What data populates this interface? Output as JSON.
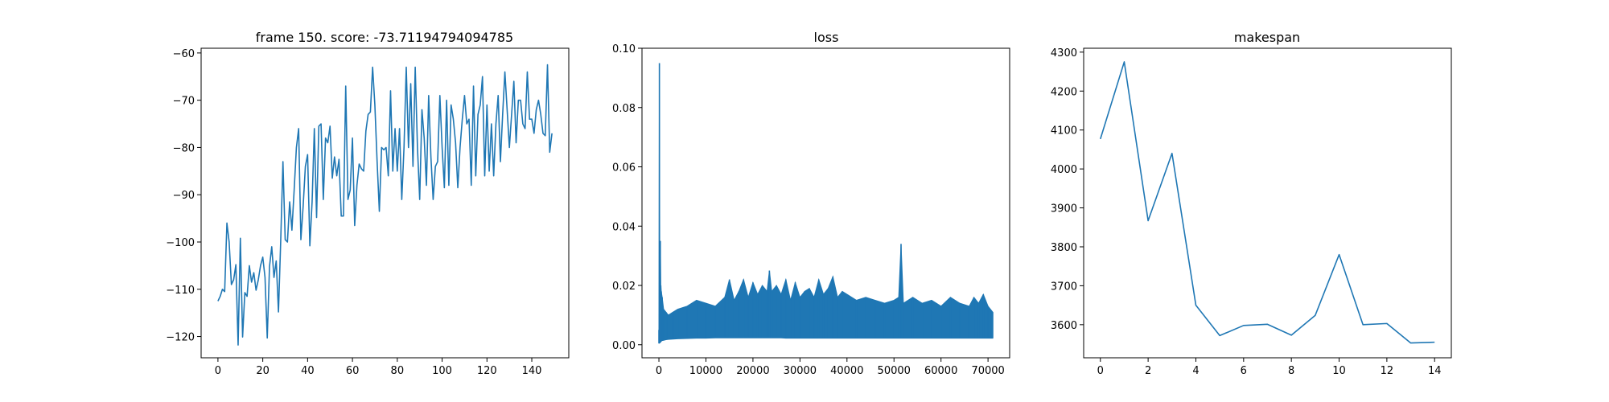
{
  "chart_data": [
    {
      "type": "line",
      "title": "frame 150. score: -73.71194794094785",
      "xlabel": "",
      "ylabel": "",
      "xlim": [
        -7.5,
        156.5
      ],
      "ylim": [
        -124.5,
        -59
      ],
      "xticks": [
        0,
        20,
        40,
        60,
        80,
        100,
        120,
        140
      ],
      "xtick_labels": [
        "0",
        "20",
        "40",
        "60",
        "80",
        "100",
        "120",
        "140"
      ],
      "yticks": [
        -120,
        -110,
        -100,
        -90,
        -80,
        -70,
        -60
      ],
      "ytick_labels": [
        "−120",
        "−110",
        "−100",
        "−90",
        "−80",
        "−70",
        "−60"
      ],
      "grid": false,
      "series": [
        {
          "color": "#1f77b4",
          "x": [
            0,
            1,
            2,
            3,
            4,
            5,
            6,
            7,
            8,
            9,
            10,
            11,
            12,
            13,
            14,
            15,
            16,
            17,
            18,
            19,
            20,
            21,
            22,
            23,
            24,
            25,
            26,
            27,
            28,
            29,
            30,
            31,
            32,
            33,
            34,
            35,
            36,
            37,
            38,
            39,
            40,
            41,
            42,
            43,
            44,
            45,
            46,
            47,
            48,
            49,
            50,
            51,
            52,
            53,
            54,
            55,
            56,
            57,
            58,
            59,
            60,
            61,
            62,
            63,
            64,
            65,
            66,
            67,
            68,
            69,
            70,
            71,
            72,
            73,
            74,
            75,
            76,
            77,
            78,
            79,
            80,
            81,
            82,
            83,
            84,
            85,
            86,
            87,
            88,
            89,
            90,
            91,
            92,
            93,
            94,
            95,
            96,
            97,
            98,
            99,
            100,
            101,
            102,
            103,
            104,
            105,
            106,
            107,
            108,
            109,
            110,
            111,
            112,
            113,
            114,
            115,
            116,
            117,
            118,
            119,
            120,
            121,
            122,
            123,
            124,
            125,
            126,
            127,
            128,
            129,
            130,
            131,
            132,
            133,
            134,
            135,
            136,
            137,
            138,
            139,
            140,
            141,
            142,
            143,
            144,
            145,
            146,
            147,
            148,
            149
          ],
          "y": [
            -112.5,
            -111.5,
            -110,
            -110.5,
            -96,
            -100,
            -109,
            -108,
            -104.8,
            -121.8,
            -99.2,
            -120.1,
            -110.7,
            -111.5,
            -105,
            -108.5,
            -106.5,
            -110.2,
            -108,
            -105,
            -103.2,
            -107.5,
            -120.3,
            -105.2,
            -101,
            -107.5,
            -104,
            -114.8,
            -99.8,
            -83,
            -99.5,
            -100,
            -91.5,
            -97.5,
            -89,
            -80,
            -76,
            -99.5,
            -92.5,
            -84,
            -81.5,
            -100.8,
            -91.5,
            -76,
            -94.8,
            -75.5,
            -75,
            -91,
            -78,
            -79,
            -75.5,
            -86.5,
            -82,
            -86,
            -82.5,
            -94.5,
            -94.5,
            -67,
            -91,
            -89,
            -78,
            -96.5,
            -88,
            -83.5,
            -84.5,
            -85,
            -76.5,
            -73,
            -72.5,
            -63,
            -71,
            -83,
            -93.5,
            -80,
            -80.5,
            -80,
            -86,
            -68,
            -85,
            -76,
            -85,
            -76,
            -91,
            -80,
            -63,
            -80,
            -66.5,
            -84,
            -63,
            -80,
            -91,
            -72,
            -78,
            -88,
            -69,
            -82,
            -91,
            -84,
            -83,
            -69,
            -80,
            -88.5,
            -70,
            -88,
            -71,
            -74,
            -79,
            -88.5,
            -80,
            -74,
            -69,
            -75,
            -74,
            -88,
            -67,
            -86,
            -73,
            -71,
            -65,
            -86,
            -71,
            -85,
            -75,
            -86,
            -75,
            -69,
            -83,
            -73,
            -64,
            -72,
            -80,
            -73,
            -66,
            -79,
            -70,
            -70,
            -75,
            -76,
            -64,
            -74,
            -74,
            -77,
            -72,
            -70,
            -73,
            -77,
            -77.5,
            -62.5,
            -81,
            -77
          ]
        }
      ]
    },
    {
      "type": "line",
      "title": "loss",
      "xlabel": "",
      "ylabel": "",
      "xlim": [
        -3600,
        74600
      ],
      "ylim": [
        -0.0044,
        0.1
      ],
      "xticks": [
        0,
        10000,
        20000,
        30000,
        40000,
        50000,
        60000,
        70000
      ],
      "xtick_labels": [
        "0",
        "10000",
        "20000",
        "30000",
        "40000",
        "50000",
        "60000",
        "70000"
      ],
      "yticks": [
        0.0,
        0.02,
        0.04,
        0.06,
        0.08,
        0.1
      ],
      "ytick_labels": [
        "0.00",
        "0.02",
        "0.04",
        "0.06",
        "0.08",
        "0.10"
      ],
      "grid": false,
      "series": [
        {
          "color": "#1f77b4",
          "x": [
            0,
            100,
            200,
            300,
            400,
            500,
            700,
            1000,
            1500,
            2000,
            3000,
            4000,
            6000,
            8000,
            10000,
            12000,
            14000,
            15000,
            16000,
            17000,
            18000,
            19000,
            20000,
            21000,
            22000,
            23000,
            23500,
            24000,
            25000,
            26000,
            27000,
            28000,
            29000,
            30000,
            31000,
            32000,
            33000,
            34000,
            35000,
            36000,
            37000,
            38000,
            39000,
            40000,
            42000,
            44000,
            46000,
            48000,
            50000,
            51000,
            51500,
            52000,
            54000,
            56000,
            58000,
            60000,
            62000,
            64000,
            66000,
            67000,
            68000,
            69000,
            70000,
            71000
          ],
          "y_max": [
            0.005,
            0.095,
            0.02,
            0.035,
            0.02,
            0.018,
            0.016,
            0.012,
            0.011,
            0.01,
            0.011,
            0.012,
            0.013,
            0.015,
            0.014,
            0.013,
            0.016,
            0.022,
            0.015,
            0.018,
            0.022,
            0.016,
            0.021,
            0.017,
            0.02,
            0.018,
            0.025,
            0.018,
            0.02,
            0.017,
            0.022,
            0.015,
            0.021,
            0.016,
            0.018,
            0.019,
            0.016,
            0.022,
            0.017,
            0.019,
            0.023,
            0.016,
            0.018,
            0.017,
            0.015,
            0.016,
            0.015,
            0.014,
            0.015,
            0.016,
            0.034,
            0.014,
            0.016,
            0.014,
            0.015,
            0.013,
            0.016,
            0.014,
            0.013,
            0.016,
            0.014,
            0.017,
            0.013,
            0.011
          ],
          "y_min": [
            0.0005,
            0.0005,
            0.0006,
            0.0008,
            0.001,
            0.0012,
            0.0014,
            0.0015,
            0.0017,
            0.0018,
            0.0019,
            0.002,
            0.0021,
            0.0022,
            0.0022,
            0.0023,
            0.0023,
            0.0023,
            0.0023,
            0.0023,
            0.0023,
            0.0023,
            0.0023,
            0.0023,
            0.0023,
            0.0023,
            0.0023,
            0.0023,
            0.0023,
            0.0023,
            0.0022,
            0.0022,
            0.0022,
            0.0022,
            0.0022,
            0.0022,
            0.0022,
            0.0022,
            0.0022,
            0.0022,
            0.0022,
            0.0022,
            0.0022,
            0.0022,
            0.0022,
            0.0022,
            0.0022,
            0.0022,
            0.0022,
            0.0022,
            0.0022,
            0.0022,
            0.0022,
            0.0022,
            0.0022,
            0.0022,
            0.0022,
            0.0022,
            0.0022,
            0.0022,
            0.0022,
            0.0022,
            0.0022,
            0.0022
          ]
        }
      ]
    },
    {
      "type": "line",
      "title": "makespan",
      "xlabel": "",
      "ylabel": "",
      "xlim": [
        -0.7,
        14.7
      ],
      "ylim": [
        3515,
        4310
      ],
      "xticks": [
        0,
        2,
        4,
        6,
        8,
        10,
        12,
        14
      ],
      "xtick_labels": [
        "0",
        "2",
        "4",
        "6",
        "8",
        "10",
        "12",
        "14"
      ],
      "yticks": [
        3600,
        3700,
        3800,
        3900,
        4000,
        4100,
        4200,
        4300
      ],
      "ytick_labels": [
        "3600",
        "3700",
        "3800",
        "3900",
        "4000",
        "4100",
        "4200",
        "4300"
      ],
      "grid": false,
      "series": [
        {
          "color": "#1f77b4",
          "x": [
            0,
            1,
            2,
            3,
            4,
            5,
            6,
            7,
            8,
            9,
            10,
            11,
            12,
            13,
            14
          ],
          "y": [
            4077,
            4275,
            3867,
            4040,
            3650,
            3572,
            3598,
            3601,
            3573,
            3624,
            3780,
            3600,
            3603,
            3553,
            3555
          ]
        }
      ]
    }
  ]
}
